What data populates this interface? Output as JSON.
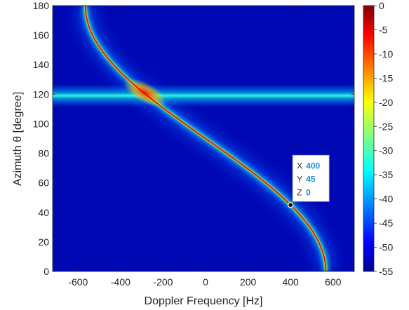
{
  "chart_data": {
    "type": "heatmap",
    "title": "",
    "xlabel": "Doppler Frequency [Hz]",
    "ylabel": "Azimuth θ [degree]",
    "xlim": [
      -720,
      700
    ],
    "ylim": [
      0,
      180
    ],
    "x_ticks": [
      -600,
      -400,
      -200,
      0,
      200,
      400,
      600
    ],
    "y_ticks": [
      0,
      20,
      40,
      60,
      80,
      100,
      120,
      140,
      160,
      180
    ],
    "colorbar": {
      "range": [
        -55,
        0
      ],
      "ticks": [
        0,
        -5,
        -10,
        -15,
        -20,
        -25,
        -30,
        -35,
        -40,
        -45,
        -50,
        -55
      ],
      "colormap": "jet"
    },
    "features": {
      "curve": {
        "relation": "f = fmax·cos(θ)",
        "fmax_hz": 566,
        "peak_db": 0
      },
      "clutter_line": {
        "azimuth_deg": 119,
        "level_db": -30
      },
      "hot_spot": {
        "doppler_hz": -285,
        "azimuth_deg": 121,
        "level_db": -5
      }
    },
    "datatip": {
      "x_label": "X",
      "x_value": "400",
      "y_label": "Y",
      "y_value": "45",
      "z_label": "Z",
      "z_value": "0",
      "point": {
        "x": 400,
        "y": 45
      }
    }
  }
}
